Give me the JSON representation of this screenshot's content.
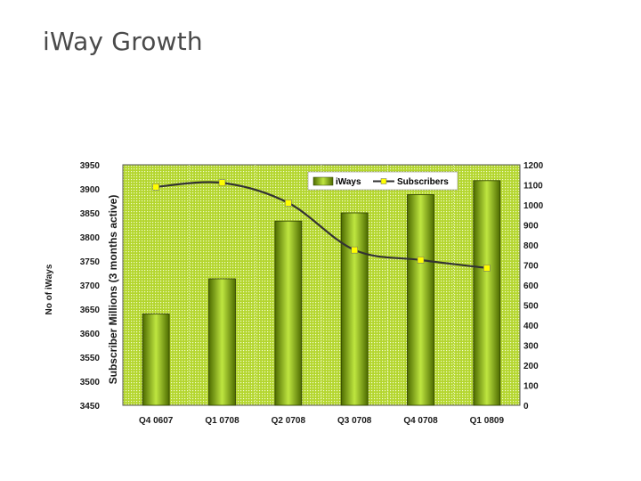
{
  "slide": {
    "title": "iWay Growth"
  },
  "chart_data": {
    "type": "bar",
    "categories": [
      "Q4 0607",
      "Q1 0708",
      "Q2 0708",
      "Q3 0708",
      "Q4 0708",
      "Q1 0809"
    ],
    "series": [
      {
        "name": "iWays",
        "type": "bar",
        "axis": "left",
        "values": [
          3640,
          3713,
          3833,
          3850,
          3888,
          3917
        ]
      },
      {
        "name": "Subscribers",
        "type": "line",
        "axis": "right",
        "values": [
          1090,
          1110,
          1010,
          775,
          725,
          685
        ]
      }
    ],
    "y_left": {
      "label": "No of iWays",
      "range": [
        3450,
        3950
      ],
      "ticks": [
        "3950",
        "3900",
        "3850",
        "3800",
        "3750",
        "3700",
        "3650",
        "3600",
        "3550",
        "3500",
        "3450"
      ]
    },
    "y_right": {
      "label": "Subscriber Millions (3 months active)",
      "range": [
        0,
        1200
      ],
      "ticks": [
        "1200",
        "1100",
        "1000",
        "900",
        "800",
        "700",
        "600",
        "500",
        "400",
        "300",
        "200",
        "100",
        "0"
      ]
    },
    "legend": {
      "position": "top-right"
    },
    "colors": {
      "bar_dark": "#4d6b00",
      "bar_light": "#bfe640",
      "plot_background": "#b4d62e",
      "line": "#333333",
      "marker": "#ffff00"
    }
  }
}
